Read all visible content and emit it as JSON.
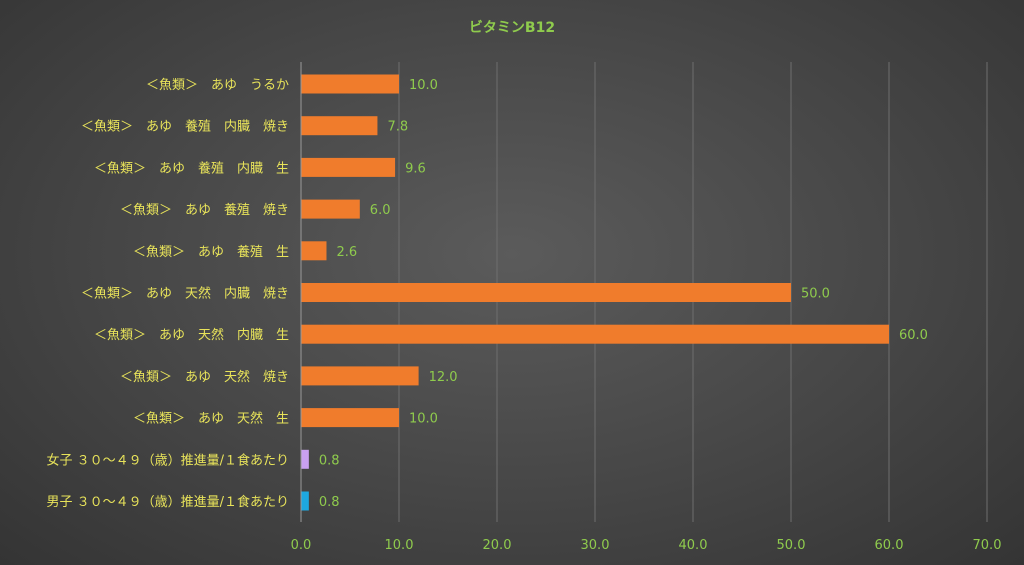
{
  "chart_data": {
    "type": "bar",
    "orientation": "horizontal",
    "title": "ビタミンB12",
    "xlabel": "",
    "ylabel": "",
    "xlim": [
      0,
      70
    ],
    "x_ticks": [
      "0.0",
      "10.0",
      "20.0",
      "30.0",
      "40.0",
      "50.0",
      "60.0",
      "70.0"
    ],
    "grid": true,
    "legend": false,
    "categories": [
      "＜魚類＞　あゆ　うるか",
      "＜魚類＞　あゆ　養殖　内臓　焼き",
      "＜魚類＞　あゆ　養殖　内臓　生",
      "＜魚類＞　あゆ　養殖　焼き",
      "＜魚類＞　あゆ　養殖　生",
      "＜魚類＞　あゆ　天然　内臓　焼き",
      "＜魚類＞　あゆ　天然　内臓　生",
      "＜魚類＞　あゆ　天然　焼き",
      "＜魚類＞　あゆ　天然　生",
      "女子 ３０～４９（歳）推進量/１食あたり",
      "男子 ３０～４９（歳）推進量/１食あたり"
    ],
    "values": [
      10.0,
      7.8,
      9.6,
      6.0,
      2.6,
      50.0,
      60.0,
      12.0,
      10.0,
      0.8,
      0.8
    ],
    "value_labels": [
      "10.0",
      "7.8",
      "9.6",
      "6.0",
      "2.6",
      "50.0",
      "60.0",
      "12.0",
      "10.0",
      "0.8",
      "0.8"
    ],
    "colors": [
      "#f07c2c",
      "#f07c2c",
      "#f07c2c",
      "#f07c2c",
      "#f07c2c",
      "#f07c2c",
      "#f07c2c",
      "#f07c2c",
      "#f07c2c",
      "#c9a0f0",
      "#1ea8e0"
    ]
  }
}
